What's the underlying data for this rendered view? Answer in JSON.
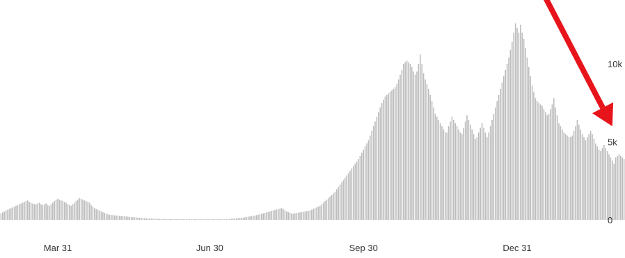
{
  "chart_data": {
    "type": "bar",
    "title": "",
    "xlabel": "",
    "ylabel": "",
    "ylim": [
      0,
      12500
    ],
    "grid": false,
    "bar_color": "#bdbdbd",
    "arrow_color": "#e8141c",
    "y_axis_position": "right",
    "x_ticks": [
      {
        "label": "Mar 31",
        "date": "2020-03-31"
      },
      {
        "label": "Jun 30",
        "date": "2020-06-30"
      },
      {
        "label": "Sep 30",
        "date": "2020-09-30"
      },
      {
        "label": "Dec 31",
        "date": "2020-12-31"
      }
    ],
    "y_ticks": [
      {
        "label": "0",
        "value": 0
      },
      {
        "label": "5k",
        "value": 5000
      },
      {
        "label": "10k",
        "value": 10000
      }
    ],
    "annotations": [
      {
        "type": "arrow",
        "description": "red downward arrow",
        "from": {
          "date": "2021-01-06",
          "value": 16500
        },
        "to": {
          "date": "2021-02-26",
          "value": 6000
        }
      }
    ],
    "series": [
      {
        "start_date": "2020-02-12",
        "values": [
          0,
          0,
          10,
          20,
          40,
          60,
          80,
          100,
          130,
          170,
          210,
          250,
          300,
          360,
          420,
          480,
          540,
          600,
          650,
          700,
          750,
          800,
          850,
          900,
          950,
          1000,
          1050,
          1100,
          1150,
          1200,
          1250,
          1150,
          1100,
          1050,
          1000,
          1000,
          1050,
          1100,
          1000,
          950,
          1000,
          1050,
          950,
          900,
          1000,
          1100,
          1200,
          1300,
          1350,
          1300,
          1250,
          1200,
          1150,
          1100,
          1000,
          950,
          900,
          1000,
          1100,
          1200,
          1300,
          1400,
          1350,
          1300,
          1250,
          1200,
          1150,
          1100,
          950,
          850,
          750,
          700,
          650,
          600,
          550,
          500,
          450,
          400,
          350,
          330,
          310,
          300,
          290,
          280,
          270,
          260,
          250,
          240,
          230,
          220,
          200,
          190,
          180,
          170,
          160,
          150,
          140,
          130,
          120,
          110,
          100,
          95,
          90,
          85,
          80,
          75,
          70,
          65,
          60,
          58,
          56,
          54,
          52,
          50,
          48,
          46,
          44,
          42,
          40,
          40,
          40,
          40,
          40,
          40,
          40,
          40,
          40,
          40,
          40,
          40,
          40,
          40,
          40,
          40,
          40,
          40,
          40,
          40,
          40,
          40,
          40,
          40,
          40,
          40,
          40,
          40,
          40,
          40,
          40,
          40,
          50,
          60,
          70,
          80,
          90,
          100,
          110,
          120,
          130,
          140,
          160,
          180,
          200,
          220,
          240,
          260,
          280,
          300,
          330,
          360,
          390,
          420,
          450,
          480,
          510,
          540,
          570,
          600,
          630,
          660,
          690,
          720,
          750,
          700,
          600,
          550,
          500,
          450,
          420,
          400,
          420,
          440,
          460,
          480,
          500,
          520,
          540,
          560,
          580,
          600,
          650,
          700,
          750,
          800,
          850,
          900,
          1000,
          1100,
          1200,
          1300,
          1400,
          1500,
          1600,
          1700,
          1800,
          1950,
          2100,
          2250,
          2400,
          2550,
          2700,
          2850,
          3000,
          3150,
          3300,
          3450,
          3600,
          3750,
          3900,
          4100,
          4300,
          4500,
          4700,
          4900,
          5100,
          5400,
          5700,
          6000,
          6300,
          6600,
          6900,
          7200,
          7500,
          7700,
          7900,
          8000,
          8100,
          8200,
          8300,
          8400,
          8500,
          8700,
          9000,
          9300,
          9600,
          10000,
          10100,
          10200,
          10100,
          10000,
          9800,
          9500,
          9300,
          9500,
          10000,
          10600,
          10000,
          9400,
          9000,
          8700,
          8400,
          8000,
          7600,
          7200,
          6800,
          6600,
          6400,
          6200,
          6000,
          5800,
          5600,
          5600,
          6000,
          6300,
          6600,
          6400,
          6200,
          6000,
          5800,
          5600,
          5500,
          5900,
          6300,
          6700,
          6400,
          6100,
          5800,
          5500,
          5200,
          5300,
          5600,
          5900,
          6200,
          5900,
          5600,
          5300,
          5600,
          6000,
          6400,
          6800,
          7200,
          7600,
          8000,
          8400,
          8800,
          9200,
          9600,
          10000,
          10400,
          10900,
          11400,
          12000,
          12600,
          12300,
          12000,
          12500,
          12000,
          11600,
          11000,
          10400,
          9800,
          9200,
          8600,
          8200,
          7800,
          7600,
          7500,
          7400,
          7300,
          7100,
          6900,
          6700,
          6800,
          7100,
          7400,
          7800,
          7200,
          6700,
          6200,
          6000,
          5800,
          5600,
          5500,
          5400,
          5300,
          5300,
          5400,
          5700,
          6000,
          6400,
          6100,
          5800,
          5500,
          5300,
          5100,
          5300,
          5500,
          5700,
          5500,
          5200,
          4900,
          4700,
          4500,
          4400,
          4600,
          4800,
          4600,
          4400,
          4200,
          4000,
          3800,
          3600,
          4000,
          4100,
          4200,
          4100,
          4000,
          3900,
          3700,
          3500,
          3300,
          3100,
          3000,
          4300,
          4400,
          4300,
          4100,
          3800,
          3500,
          2700
        ]
      }
    ]
  }
}
